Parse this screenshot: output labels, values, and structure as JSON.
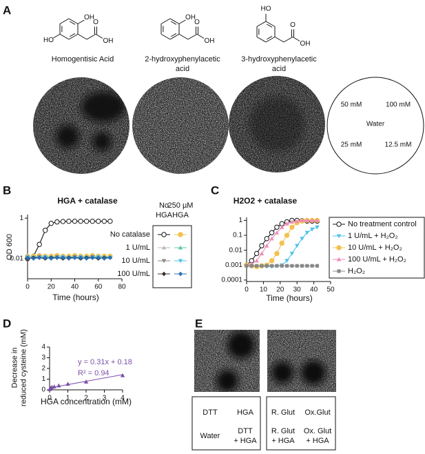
{
  "panel_labels": [
    "A",
    "B",
    "C",
    "D",
    "E"
  ],
  "panel_a": {
    "structures": [
      {
        "name": [
          "Homogentisic Acid"
        ],
        "substituents": [
          "OH",
          "HO"
        ],
        "acid": [
          "O",
          "OH"
        ]
      },
      {
        "name": [
          "2-hydroxyphenylacetic",
          "acid"
        ],
        "substituents": [
          "OH"
        ],
        "acid": [
          "O",
          "OH"
        ]
      },
      {
        "name": [
          "3-hydroxyphenylacetic",
          "acid"
        ],
        "substituents": [
          "HO"
        ],
        "acid": [
          "O",
          "OH"
        ]
      }
    ],
    "plate_map": [
      "50 mM",
      "100 mM",
      "Water",
      "25 mM",
      "12.5 mM"
    ]
  },
  "chart_data": [
    {
      "type": "line",
      "title": "HGA + catalase",
      "x_label": "Time (hours)",
      "y_label": "OD 600",
      "log_y": true,
      "x": [
        0,
        5,
        10,
        15,
        20,
        25,
        30,
        35,
        40,
        45,
        50,
        55,
        60,
        65,
        70
      ],
      "xlim": [
        0,
        80
      ],
      "xticks": [
        0,
        20,
        40,
        60,
        80
      ],
      "ylim": [
        0.001,
        1.5
      ],
      "yticks": [
        0.01,
        1
      ],
      "legend_columns": [
        [
          "No",
          "HGA"
        ],
        [
          "250 µM",
          "HGA"
        ]
      ],
      "series": [
        {
          "name": "No catalase",
          "variants": [
            {
              "color": "#111111",
              "marker": "circle-open",
              "values": [
                0.01,
                0.013,
                0.05,
                0.25,
                0.55,
                0.65,
                0.68,
                0.7,
                0.7,
                0.7,
                0.7,
                0.7,
                0.7,
                0.7,
                0.7
              ]
            },
            {
              "color": "#f2c14e",
              "marker": "circle",
              "values": [
                0.013,
                0.013,
                0.014,
                0.013,
                0.013,
                0.014,
                0.013,
                0.013,
                0.014,
                0.013,
                0.013,
                0.014,
                0.013,
                0.013,
                0.013
              ]
            }
          ]
        },
        {
          "name": "1 U/mL",
          "variants": [
            {
              "color": "#bbbbbb",
              "marker": "triangle-up",
              "values": [
                0.012,
                0.012,
                0.013,
                0.012,
                0.012,
                0.012,
                0.013,
                0.012,
                0.012,
                0.012,
                0.012,
                0.013,
                0.012,
                0.012,
                0.012
              ]
            },
            {
              "color": "#5cc8a8",
              "marker": "triangle-up",
              "values": [
                0.011,
                0.012,
                0.012,
                0.011,
                0.012,
                0.012,
                0.011,
                0.012,
                0.012,
                0.011,
                0.012,
                0.012,
                0.011,
                0.012,
                0.012
              ]
            }
          ]
        },
        {
          "name": "10 U/mL",
          "variants": [
            {
              "color": "#888888",
              "marker": "triangle-down",
              "values": [
                0.011,
                0.011,
                0.012,
                0.011,
                0.011,
                0.012,
                0.011,
                0.011,
                0.012,
                0.011,
                0.011,
                0.012,
                0.011,
                0.011,
                0.011
              ]
            },
            {
              "color": "#4fc3e8",
              "marker": "triangle-down",
              "values": [
                0.012,
                0.011,
                0.011,
                0.012,
                0.011,
                0.011,
                0.012,
                0.011,
                0.011,
                0.012,
                0.011,
                0.011,
                0.012,
                0.011,
                0.011
              ]
            }
          ]
        },
        {
          "name": "100 U/mL",
          "variants": [
            {
              "color": "#333333",
              "marker": "diamond",
              "values": [
                0.01,
                0.011,
                0.011,
                0.01,
                0.011,
                0.011,
                0.01,
                0.011,
                0.011,
                0.01,
                0.011,
                0.011,
                0.01,
                0.011,
                0.011
              ]
            },
            {
              "color": "#2a6fb5",
              "marker": "diamond",
              "values": [
                0.011,
                0.01,
                0.011,
                0.011,
                0.01,
                0.011,
                0.011,
                0.01,
                0.011,
                0.011,
                0.01,
                0.011,
                0.011,
                0.01,
                0.011
              ]
            }
          ]
        }
      ]
    },
    {
      "type": "line",
      "title": "H2O2 + catalase",
      "x_label": "Time (hours)",
      "log_y": true,
      "x": [
        0,
        3,
        6,
        9,
        12,
        15,
        18,
        21,
        24,
        27,
        30,
        33,
        36,
        39,
        42
      ],
      "xlim": [
        0,
        50
      ],
      "xticks": [
        0,
        10,
        20,
        30,
        40,
        50
      ],
      "ylim": [
        8e-05,
        1.6
      ],
      "yticks": [
        0.0001,
        0.001,
        0.01,
        0.1,
        1
      ],
      "series": [
        {
          "name": "No treatment control",
          "color": "#111111",
          "marker": "circle-open",
          "values": [
            0.001,
            0.002,
            0.006,
            0.02,
            0.06,
            0.15,
            0.35,
            0.6,
            0.8,
            1.0,
            1.0,
            0.95,
            0.9,
            0.9,
            0.9
          ]
        },
        {
          "name": "1 U/mL + H₂O₂",
          "color": "#4fc3e8",
          "marker": "triangle-down",
          "values": [
            0.001,
            0.0009,
            0.0008,
            0.0008,
            0.0008,
            0.0008,
            0.0009,
            0.001,
            0.002,
            0.006,
            0.02,
            0.06,
            0.15,
            0.25,
            0.35
          ]
        },
        {
          "name": "10 U/mL + H₂O₂",
          "color": "#f2c14e",
          "marker": "circle",
          "values": [
            0.001,
            0.0009,
            0.0008,
            0.0009,
            0.001,
            0.002,
            0.006,
            0.03,
            0.1,
            0.35,
            0.7,
            0.9,
            1.0,
            1.0,
            1.0
          ]
        },
        {
          "name": "100 U/mL + H₂O₂",
          "color": "#f08ab8",
          "marker": "triangle-up",
          "values": [
            0.001,
            0.0012,
            0.002,
            0.006,
            0.02,
            0.06,
            0.15,
            0.35,
            0.6,
            0.8,
            0.9,
            1.0,
            1.0,
            1.0,
            1.0
          ]
        },
        {
          "name": "H₂O₂",
          "color": "#888888",
          "marker": "square",
          "values": [
            0.0009,
            0.0009,
            0.0009,
            0.0009,
            0.0009,
            0.0009,
            0.0009,
            0.0009,
            0.0009,
            0.0009,
            0.0009,
            0.0009,
            0.0009,
            0.0009,
            0.0009
          ]
        }
      ]
    },
    {
      "type": "scatter",
      "x_label": "HGA concentration (mM)",
      "y_label": [
        "Decrease in",
        "reduced cysteine (mM)"
      ],
      "x": [
        0,
        0.0625,
        0.125,
        0.25,
        0.5,
        1,
        2,
        4
      ],
      "values": [
        0.05,
        0.18,
        0.25,
        0.3,
        0.4,
        0.55,
        0.75,
        1.35
      ],
      "color": "#7b4fa8",
      "marker": "triangle-up",
      "xlim": [
        0,
        4
      ],
      "xticks": [
        0,
        1,
        2,
        3,
        4
      ],
      "ylim": [
        0,
        4
      ],
      "yticks": [
        0,
        1,
        2,
        3,
        4
      ],
      "fit": {
        "label": "y = 0.31x + 0.18",
        "slope": 0.31,
        "intercept": 0.18
      },
      "r2_label": "R² = 0.94"
    }
  ],
  "panel_e": {
    "boxes": [
      [
        [
          "DTT"
        ],
        [
          "HGA"
        ],
        [
          "Water"
        ],
        [
          "DTT",
          "+ HGA"
        ]
      ],
      [
        [
          "R. Glut"
        ],
        [
          "Ox.Glut"
        ],
        [
          "R. Glut",
          "+ HGA"
        ],
        [
          "Ox. Glut",
          "+ HGA"
        ]
      ]
    ]
  }
}
